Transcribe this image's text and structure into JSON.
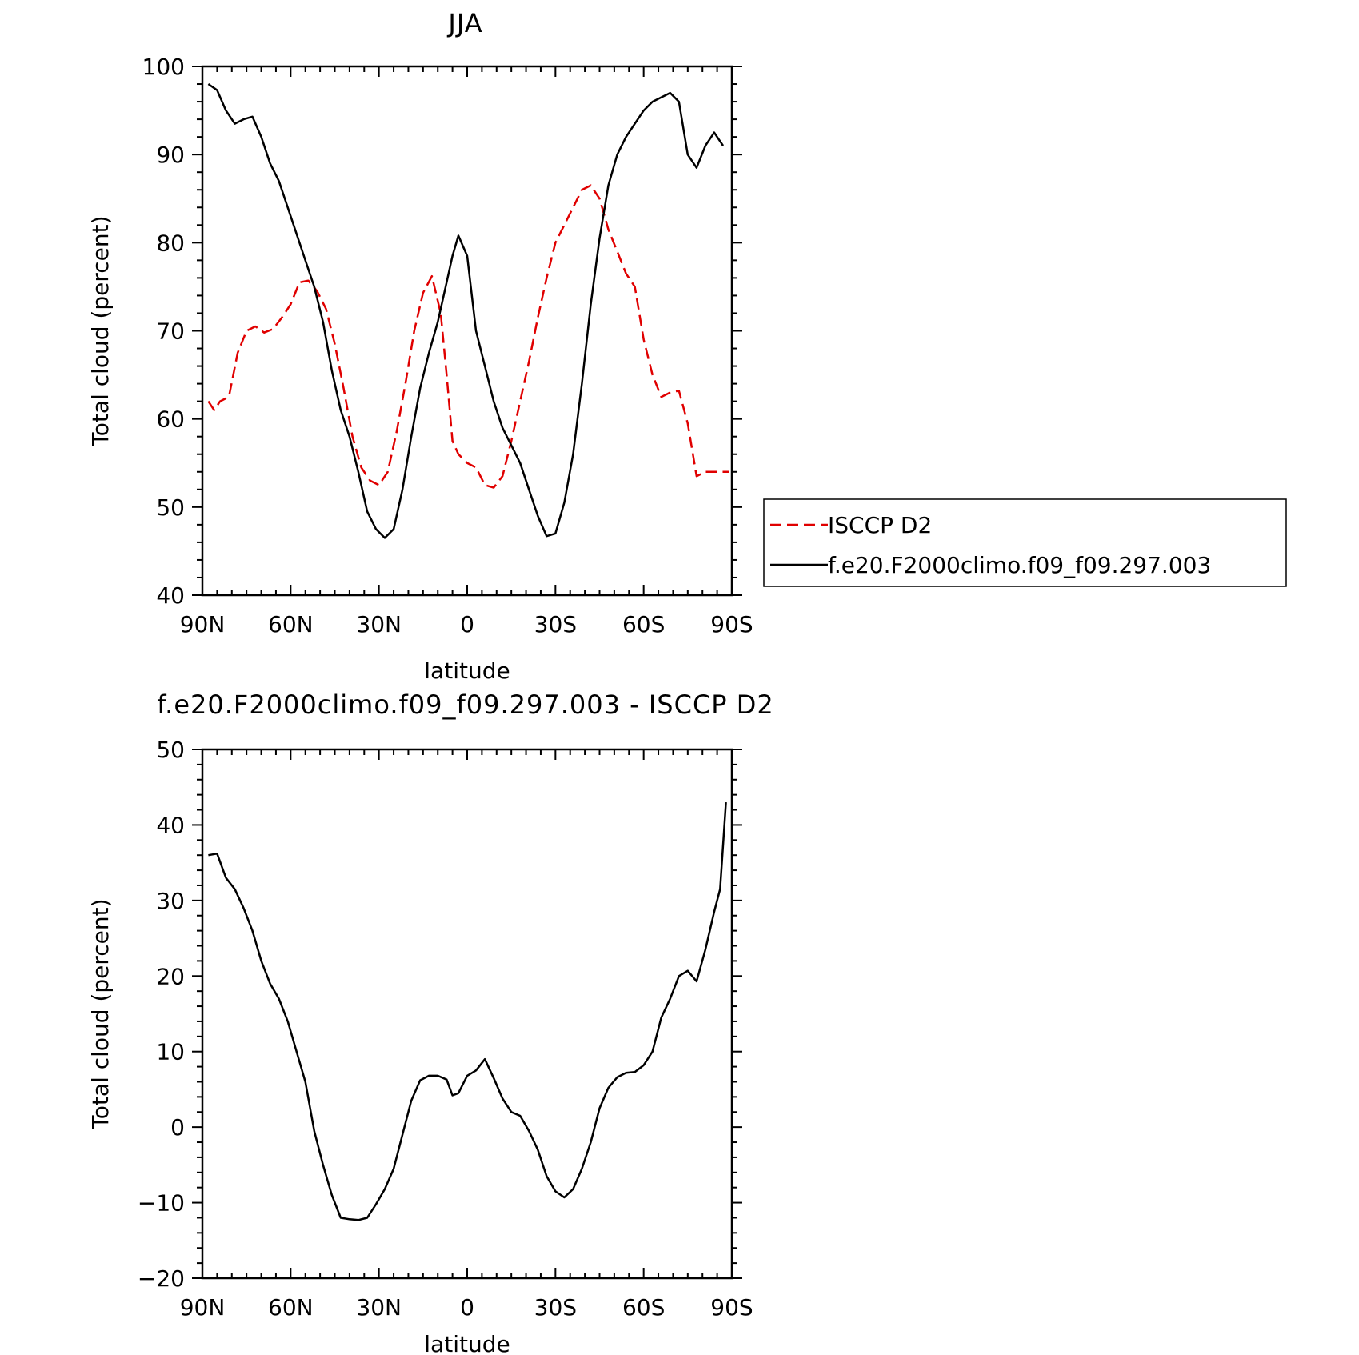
{
  "chart_data": [
    {
      "type": "line",
      "title": "JJA",
      "xlabel": "latitude",
      "ylabel": "Total cloud (percent)",
      "xlim": [
        90,
        -90
      ],
      "ylim": [
        40,
        100
      ],
      "x_ticks": [
        {
          "value": 90,
          "label": "90N"
        },
        {
          "value": 60,
          "label": "60N"
        },
        {
          "value": 30,
          "label": "30N"
        },
        {
          "value": 0,
          "label": "0"
        },
        {
          "value": -30,
          "label": "30S"
        },
        {
          "value": -60,
          "label": "60S"
        },
        {
          "value": -90,
          "label": "90S"
        }
      ],
      "y_ticks": [
        {
          "value": 100,
          "label": "100"
        },
        {
          "value": 90,
          "label": "90"
        },
        {
          "value": 80,
          "label": "80"
        },
        {
          "value": 70,
          "label": "70"
        },
        {
          "value": 60,
          "label": "60"
        },
        {
          "value": 50,
          "label": "50"
        },
        {
          "value": 40,
          "label": "40"
        }
      ],
      "legend": {
        "placement": "right of plot",
        "entries": [
          {
            "label": "ISCCP D2",
            "color": "#e00000",
            "style": "dashed"
          },
          {
            "label": "f.e20.F2000climo.f09_f09.297.003",
            "color": "#000000",
            "style": "solid"
          }
        ]
      },
      "series": [
        {
          "name": "ISCCP D2",
          "color": "#e00000",
          "style": "dashed",
          "x": [
            88,
            86,
            84,
            81,
            78,
            75,
            72,
            69,
            66,
            63,
            60,
            57,
            54,
            51,
            48,
            45,
            42,
            39,
            36,
            33,
            30,
            27,
            24,
            21,
            18,
            15,
            12,
            9,
            7,
            5,
            3,
            0,
            -3,
            -6,
            -9,
            -12,
            -15,
            -18,
            -21,
            -24,
            -27,
            -30,
            -33,
            -36,
            -39,
            -42,
            -45,
            -48,
            -51,
            -54,
            -57,
            -60,
            -63,
            -66,
            -69,
            -72,
            -75,
            -78,
            -81,
            -84,
            -87,
            -89
          ],
          "y": [
            62.0,
            61.0,
            62.0,
            62.5,
            67.5,
            70.0,
            70.5,
            69.8,
            70.2,
            71.5,
            73.0,
            75.5,
            75.7,
            74.5,
            72.5,
            68.5,
            63.5,
            58.0,
            54.5,
            53.0,
            52.5,
            54.0,
            58.5,
            64.0,
            70.0,
            74.3,
            76.2,
            72.0,
            65.0,
            57.5,
            56.0,
            55.0,
            54.5,
            52.5,
            52.2,
            53.5,
            57.5,
            62.0,
            66.5,
            71.5,
            76.0,
            80.0,
            82.0,
            84.0,
            86.0,
            86.5,
            85.0,
            81.5,
            79.0,
            76.5,
            75.0,
            69.0,
            65.0,
            62.5,
            63.0,
            63.2,
            59.5,
            53.5,
            54.0,
            54.0,
            54.0,
            54.0
          ]
        },
        {
          "name": "f.e20.F2000climo.f09_f09.297.003",
          "color": "#000000",
          "style": "solid",
          "x": [
            88,
            85,
            82,
            79,
            76,
            73,
            70,
            67,
            64,
            61,
            58,
            55,
            52,
            49,
            46,
            43,
            40,
            37,
            34,
            31,
            28,
            25,
            22,
            19,
            16,
            13,
            10,
            7,
            5,
            3,
            0,
            -3,
            -6,
            -9,
            -12,
            -15,
            -18,
            -21,
            -24,
            -27,
            -30,
            -33,
            -36,
            -39,
            -42,
            -45,
            -48,
            -51,
            -54,
            -57,
            -60,
            -63,
            -66,
            -69,
            -72,
            -75,
            -78,
            -81,
            -84,
            -87
          ],
          "y": [
            98.0,
            97.3,
            95.0,
            93.5,
            94.0,
            94.3,
            92.0,
            89.0,
            87.0,
            84.0,
            81.0,
            78.0,
            75.0,
            71.0,
            65.5,
            61.0,
            58.0,
            54.0,
            49.5,
            47.5,
            46.5,
            47.5,
            52.0,
            58.0,
            63.5,
            67.5,
            71.0,
            75.5,
            78.5,
            80.8,
            78.5,
            70.0,
            66.0,
            62.0,
            59.0,
            57.0,
            55.0,
            52.0,
            49.0,
            46.7,
            47.0,
            50.5,
            56.0,
            64.0,
            73.0,
            80.5,
            86.5,
            90.0,
            92.0,
            93.5,
            95.0,
            96.0,
            96.5,
            97.0,
            96.0,
            90.0,
            88.5,
            91.0,
            92.5,
            91.0
          ]
        }
      ]
    },
    {
      "type": "line",
      "title": "f.e20.F2000climo.f09_f09.297.003 - ISCCP D2",
      "xlabel": "latitude",
      "ylabel": "Total cloud (percent)",
      "xlim": [
        90,
        -90
      ],
      "ylim": [
        -20,
        50
      ],
      "x_ticks": [
        {
          "value": 90,
          "label": "90N"
        },
        {
          "value": 60,
          "label": "60N"
        },
        {
          "value": 30,
          "label": "30N"
        },
        {
          "value": 0,
          "label": "0"
        },
        {
          "value": -30,
          "label": "30S"
        },
        {
          "value": -60,
          "label": "60S"
        },
        {
          "value": -90,
          "label": "90S"
        }
      ],
      "y_ticks": [
        {
          "value": 50,
          "label": "50"
        },
        {
          "value": 40,
          "label": "40"
        },
        {
          "value": 30,
          "label": "30"
        },
        {
          "value": 20,
          "label": "20"
        },
        {
          "value": 10,
          "label": "10"
        },
        {
          "value": 0,
          "label": "0"
        },
        {
          "value": -10,
          "label": "−10"
        },
        {
          "value": -20,
          "label": "−20"
        }
      ],
      "series": [
        {
          "color": "#000000",
          "style": "solid",
          "x": [
            88,
            85,
            82,
            79,
            76,
            73,
            70,
            67,
            64,
            61,
            58,
            55,
            52,
            49,
            46,
            43,
            40,
            37,
            34,
            31,
            28,
            25,
            22,
            19,
            16,
            13,
            10,
            7,
            5,
            3,
            0,
            -3,
            -6,
            -9,
            -12,
            -15,
            -18,
            -21,
            -24,
            -27,
            -30,
            -33,
            -36,
            -39,
            -42,
            -45,
            -48,
            -51,
            -54,
            -57,
            -60,
            -63,
            -66,
            -69,
            -72,
            -75,
            -78,
            -81,
            -84,
            -86,
            -88
          ],
          "y": [
            36.0,
            36.2,
            33.0,
            31.5,
            29.0,
            26.0,
            22.0,
            19.0,
            17.0,
            14.0,
            10.0,
            6.0,
            -0.5,
            -5.0,
            -9.0,
            -12.0,
            -12.2,
            -12.3,
            -12.0,
            -10.2,
            -8.2,
            -5.5,
            -1.0,
            3.5,
            6.2,
            6.8,
            6.8,
            6.3,
            4.2,
            4.5,
            6.8,
            7.5,
            9.0,
            6.5,
            3.8,
            2.0,
            1.5,
            -0.5,
            -3.0,
            -6.5,
            -8.5,
            -9.3,
            -8.2,
            -5.5,
            -2.0,
            2.5,
            5.2,
            6.6,
            7.2,
            7.3,
            8.2,
            10.0,
            14.5,
            17.0,
            20.0,
            20.7,
            19.3,
            23.5,
            28.5,
            31.5,
            43.0
          ]
        }
      ]
    }
  ]
}
